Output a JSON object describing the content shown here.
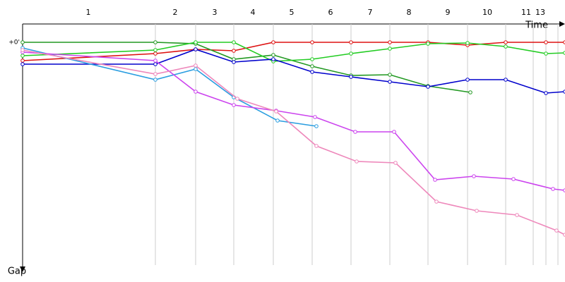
{
  "chart_data": {
    "type": "line",
    "x_label": "Time",
    "y_label": "Gap",
    "xlim": [
      0,
      768
    ],
    "ylim": [
      0,
      316
    ],
    "xticks": [
      {
        "value": 93,
        "label": "1"
      },
      {
        "value": 216,
        "label": "2"
      },
      {
        "value": 272,
        "label": "3"
      },
      {
        "value": 326,
        "label": "4"
      },
      {
        "value": 381,
        "label": "5"
      },
      {
        "value": 436,
        "label": "6"
      },
      {
        "value": 492,
        "label": "7"
      },
      {
        "value": 547,
        "label": "8"
      },
      {
        "value": 602,
        "label": "9"
      },
      {
        "value": 658,
        "label": "10"
      },
      {
        "value": 713,
        "label": "11"
      },
      {
        "value": 733,
        "label": "13"
      }
    ],
    "yticks": [
      {
        "value": 0,
        "label": "+0'"
      }
    ],
    "lap_boundaries": [
      188,
      245,
      299,
      355,
      410,
      465,
      520,
      574,
      630,
      684,
      723,
      741,
      758
    ],
    "series": [
      {
        "color": "#dd1111",
        "x": [
          0,
          188,
          245,
          299,
          355,
          410,
          465,
          520,
          574,
          630,
          684,
          741,
          768
        ],
        "values": [
          26,
          16,
          10,
          12,
          0,
          0,
          0,
          0,
          0,
          4,
          0,
          0,
          0
        ]
      },
      {
        "color": "#229922",
        "x": [
          0,
          188,
          245,
          299,
          355,
          410,
          465,
          520,
          574,
          634
        ],
        "values": [
          0,
          0,
          2,
          24,
          18,
          34,
          47,
          46,
          62,
          71
        ]
      },
      {
        "color": "#22cc22",
        "x": [
          0,
          188,
          245,
          299,
          355,
          410,
          465,
          520,
          574,
          630,
          684,
          741,
          768
        ],
        "values": [
          19,
          11,
          0,
          0,
          27,
          24,
          16,
          9,
          2,
          1,
          6,
          16,
          15
        ]
      },
      {
        "color": "#0000cc",
        "x": [
          0,
          188,
          245,
          299,
          355,
          410,
          465,
          520,
          574,
          630,
          684,
          741,
          768
        ],
        "values": [
          31,
          31,
          10,
          28,
          24,
          42,
          49,
          56,
          63,
          53,
          53,
          72,
          70
        ]
      },
      {
        "color": "#2a9de0",
        "x": [
          0,
          188,
          245,
          299,
          361,
          416
        ],
        "values": [
          8,
          53,
          38,
          78,
          111,
          119
        ]
      },
      {
        "color": "#cc44ee",
        "x": [
          0,
          188,
          245,
          299,
          359,
          414,
          471,
          526,
          584,
          639,
          695,
          751,
          768
        ],
        "values": [
          14,
          26,
          70,
          89,
          97,
          106,
          127,
          127,
          195,
          190,
          194,
          208,
          210
        ]
      },
      {
        "color": "#ee88bb",
        "x": [
          0,
          188,
          245,
          304,
          359,
          416,
          473,
          528,
          586,
          643,
          700,
          756,
          768
        ],
        "values": [
          11,
          45,
          33,
          80,
          98,
          147,
          169,
          171,
          226,
          239,
          245,
          267,
          273
        ]
      }
    ]
  }
}
